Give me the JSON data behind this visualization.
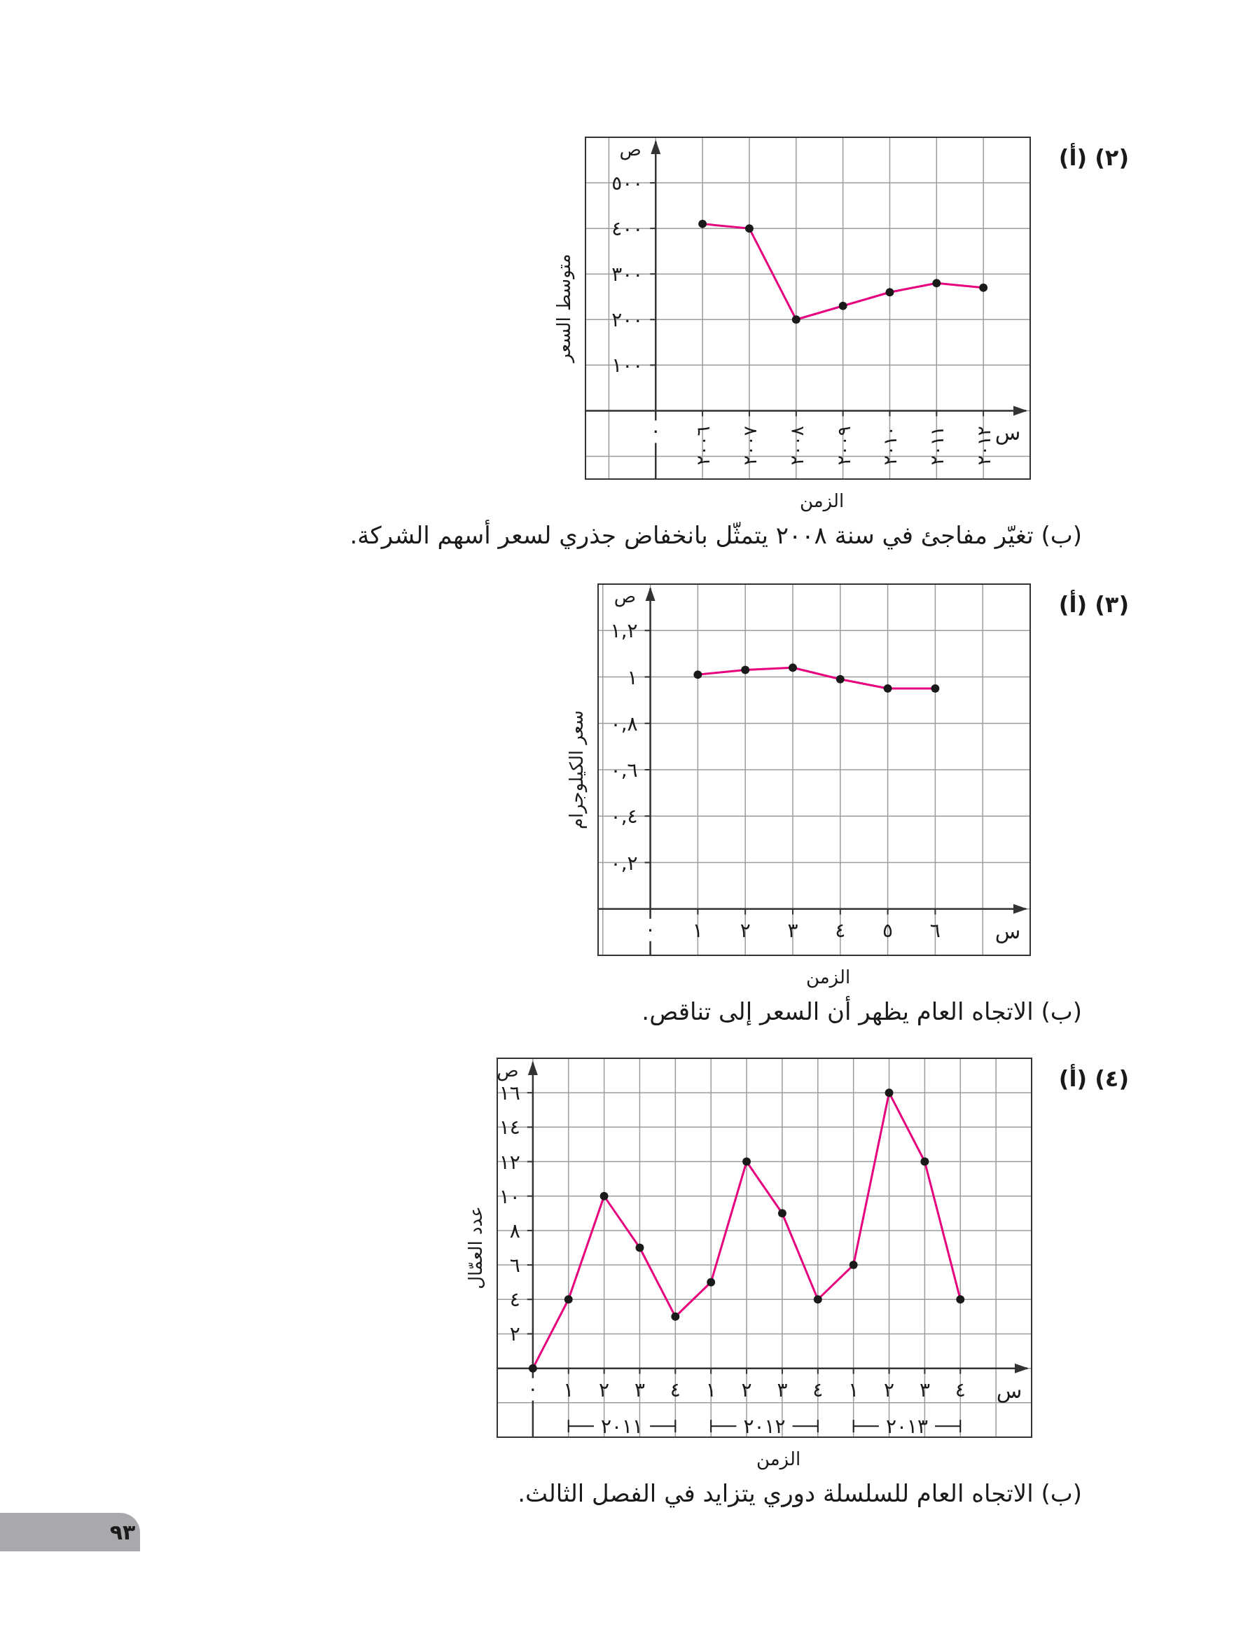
{
  "chart_data": [
    {
      "type": "line",
      "xlabel": "الزمن",
      "ylabel": "متوسط السعر",
      "categories": [
        "٠",
        "٢٠٠٦",
        "٢٠٠٧",
        "٢٠٠٨",
        "٢٠٠٩",
        "٢٠١٠",
        "٢٠١١",
        "٢٠١٢"
      ],
      "values": [
        null,
        410,
        400,
        200,
        230,
        260,
        280,
        270
      ],
      "color": "#e6007e",
      "marker": "circle",
      "grid": true,
      "ylim": [
        -150,
        600
      ],
      "yticks": [
        {
          "value": 100,
          "label": "١٠٠"
        },
        {
          "value": 200,
          "label": "٢٠٠"
        },
        {
          "value": 300,
          "label": "٣٠٠"
        },
        {
          "value": 400,
          "label": "٤٠٠"
        },
        {
          "value": 500,
          "label": "٥٠٠"
        }
      ],
      "annotations": [
        "(ب) تغيّر مفاجئ في سنة ٢٠٠٨ يتمثّل بانخفاض جذري لسعر أسهم الشركة.",
        "س",
        "ص",
        "(٢) (أ)"
      ]
    },
    {
      "type": "line",
      "xlabel": "الزمن",
      "ylabel": "سعر الكيلوجرام",
      "x": [
        1,
        2,
        3,
        4,
        5,
        6
      ],
      "values": [
        1.01,
        1.03,
        1.04,
        0.99,
        0.95,
        0.95
      ],
      "color": "#e6007e",
      "marker": "circle",
      "grid": true,
      "xlim": [
        -1.1,
        8
      ],
      "ylim": [
        -0.2,
        1.4
      ],
      "xticks": [
        {
          "value": 0,
          "label": "٠"
        },
        {
          "value": 1,
          "label": "١"
        },
        {
          "value": 2,
          "label": "٢"
        },
        {
          "value": 3,
          "label": "٣"
        },
        {
          "value": 4,
          "label": "٤"
        },
        {
          "value": 5,
          "label": "٥"
        },
        {
          "value": 6,
          "label": "٦"
        }
      ],
      "yticks": [
        {
          "value": 0.2,
          "label": "٠,٢"
        },
        {
          "value": 0.4,
          "label": "٠,٤"
        },
        {
          "value": 0.6,
          "label": "٠,٦"
        },
        {
          "value": 0.8,
          "label": "٠,٨"
        },
        {
          "value": 1,
          "label": "١"
        },
        {
          "value": 1.2,
          "label": "١,٢"
        }
      ],
      "annotations": [
        "(ب) الاتجاه العام يظهر أن السعر إلى تناقص.",
        "س",
        "ص",
        "(٣) (أ)"
      ]
    },
    {
      "type": "line",
      "xlabel": "الزمن",
      "ylabel": "عدد العمّال",
      "categories": [
        "٠",
        "١",
        "٢",
        "٣",
        "٤",
        "١",
        "٢",
        "٣",
        "٤",
        "١",
        "٢",
        "٣",
        "٤"
      ],
      "values": [
        0,
        4,
        10,
        7,
        3,
        5,
        12,
        9,
        4,
        6,
        16,
        12,
        4
      ],
      "color": "#e6007e",
      "marker": "circle",
      "grid": true,
      "ylim": [
        -4,
        18
      ],
      "yticks": [
        {
          "value": 2,
          "label": "٢"
        },
        {
          "value": 4,
          "label": "٤"
        },
        {
          "value": 6,
          "label": "٦"
        },
        {
          "value": 8,
          "label": "٨"
        },
        {
          "value": 10,
          "label": "١٠"
        },
        {
          "value": 12,
          "label": "١٢"
        },
        {
          "value": 14,
          "label": "١٤"
        },
        {
          "value": 16,
          "label": "١٦"
        }
      ],
      "annotations": [
        "(ب) الاتجاه العام للسلسلة دوري يتزايد في الفصل الثالث.",
        "٩٣",
        "س",
        "ص",
        "٢٠١١",
        "٢٠١٢",
        "٢٠١٣",
        "(٤) (أ)"
      ]
    }
  ]
}
